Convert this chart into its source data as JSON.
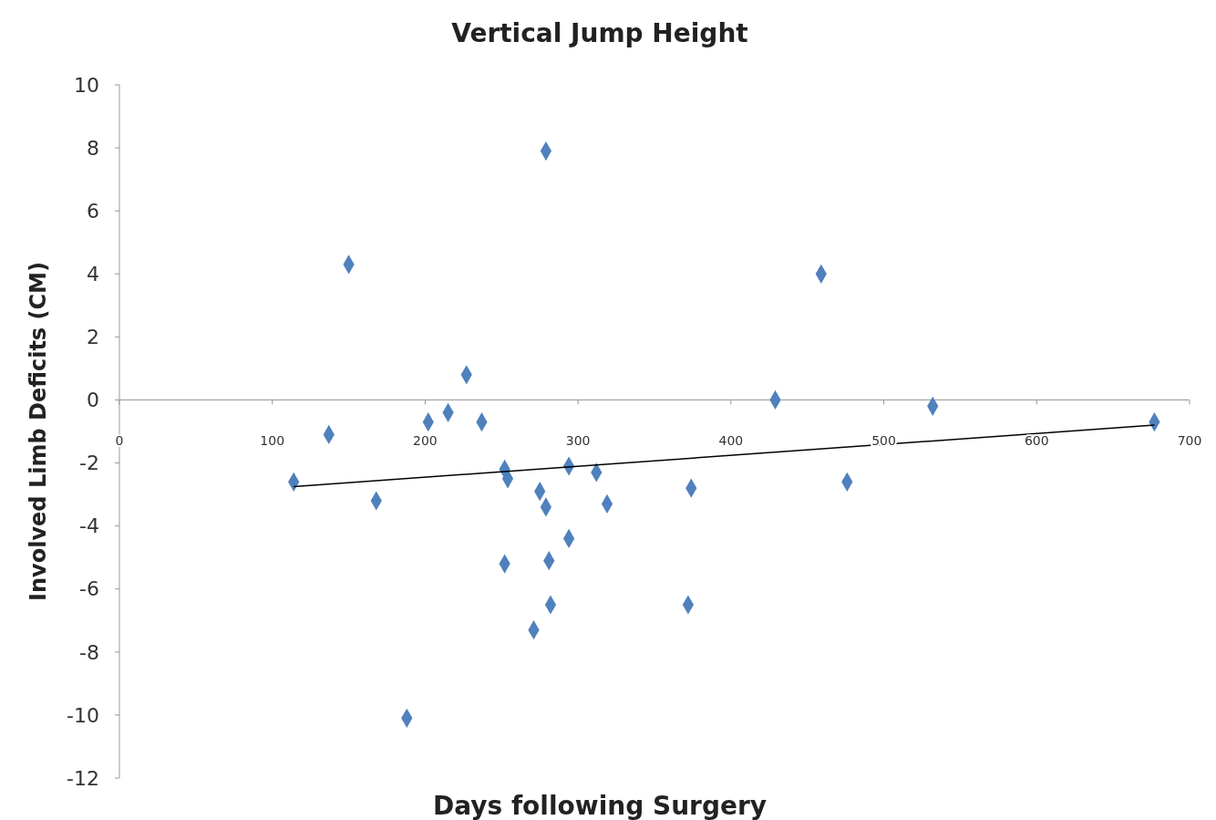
{
  "chart_data": {
    "type": "scatter",
    "title": "Vertical Jump Height",
    "xlabel": "Days following Surgery",
    "ylabel": "Involved Limb Deficits (CM)",
    "xlim": [
      0,
      700
    ],
    "xticks": [
      0,
      100,
      200,
      300,
      400,
      500,
      600,
      700
    ],
    "ylim": [
      -12,
      10
    ],
    "yticks": [
      -12,
      -10,
      -8,
      -6,
      -4,
      -2,
      0,
      2,
      4,
      6,
      8,
      10
    ],
    "series": [
      {
        "marker": "diamond",
        "color": "#4f81bd",
        "x": [
          279,
          150,
          459,
          227,
          429,
          532,
          215,
          202,
          237,
          677,
          137,
          114,
          252,
          254,
          294,
          312,
          275,
          279,
          374,
          476,
          168,
          319,
          294,
          252,
          281,
          282,
          372,
          271,
          188
        ],
        "values": [
          7.9,
          4.3,
          4.0,
          0.8,
          0.0,
          -0.2,
          -0.4,
          -0.7,
          -0.7,
          -0.7,
          -1.1,
          -2.6,
          -2.2,
          -2.5,
          -2.1,
          -2.3,
          -2.9,
          -3.4,
          -2.8,
          -2.6,
          -3.2,
          -3.3,
          -4.4,
          -5.2,
          -5.1,
          -6.5,
          -6.5,
          -7.3,
          -10.1
        ]
      },
      {
        "type": "line",
        "color": "#000000",
        "x": [
          114,
          677
        ],
        "values": [
          -2.75,
          -0.8
        ]
      }
    ]
  }
}
